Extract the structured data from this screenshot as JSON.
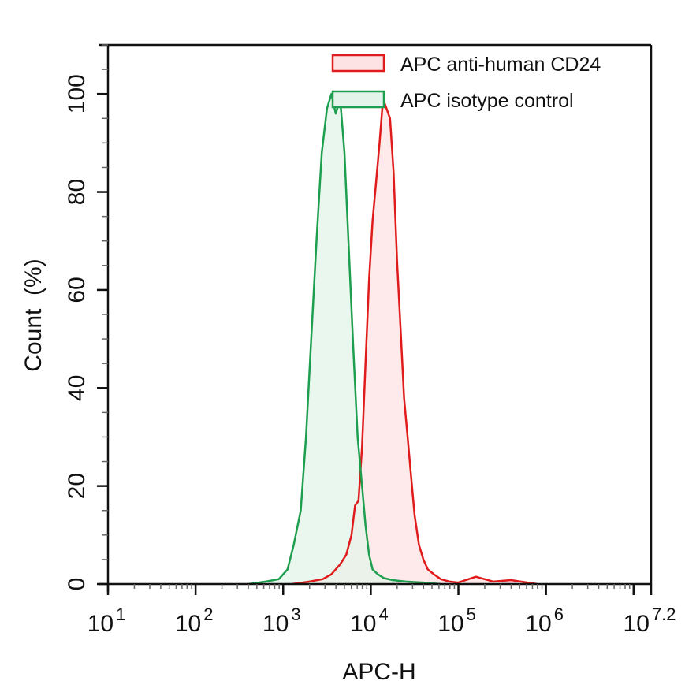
{
  "chart_data": {
    "type": "area",
    "title": "",
    "xlabel": "APC-H",
    "ylabel": "Count  (%)",
    "xscale": "log10",
    "xlim_log10": [
      1,
      7.2
    ],
    "ylim": [
      0,
      110
    ],
    "x_tick_labels": [
      {
        "base": "10",
        "exp": "1",
        "log10": 1
      },
      {
        "base": "10",
        "exp": "2",
        "log10": 2
      },
      {
        "base": "10",
        "exp": "3",
        "log10": 3
      },
      {
        "base": "10",
        "exp": "4",
        "log10": 4
      },
      {
        "base": "10",
        "exp": "5",
        "log10": 5
      },
      {
        "base": "10",
        "exp": "6",
        "log10": 6
      },
      {
        "base": "10",
        "exp": "7.2",
        "log10": 7.2
      }
    ],
    "y_ticks": [
      0,
      20,
      40,
      60,
      80,
      100
    ],
    "y_minor_step": 5,
    "grid": false,
    "legend_position": "top-right",
    "series": [
      {
        "name": "APC anti-human CD24",
        "color": "#e01b1b",
        "fill": "#fde3e3",
        "x_log10": [
          3.1,
          3.3,
          3.45,
          3.55,
          3.65,
          3.72,
          3.78,
          3.82,
          3.86,
          3.9,
          3.94,
          3.98,
          4.02,
          4.06,
          4.1,
          4.14,
          4.18,
          4.22,
          4.26,
          4.3,
          4.34,
          4.38,
          4.42,
          4.46,
          4.5,
          4.55,
          4.6,
          4.65,
          4.72,
          4.8,
          4.9,
          5.0,
          5.2,
          5.4,
          5.6,
          5.9
        ],
        "y": [
          0,
          0.5,
          1,
          2,
          4,
          6,
          10,
          16,
          17,
          28,
          45,
          62,
          74,
          82,
          90,
          99,
          97,
          95,
          84,
          66,
          52,
          38,
          30,
          22,
          14,
          8,
          5,
          3,
          2,
          1,
          0.5,
          0.3,
          1.5,
          0.5,
          0.8,
          0
        ]
      },
      {
        "name": "APC isotype control",
        "color": "#1e9e4f",
        "fill": "#e3f4ea",
        "x_log10": [
          2.6,
          2.8,
          2.95,
          3.05,
          3.12,
          3.2,
          3.26,
          3.32,
          3.38,
          3.44,
          3.5,
          3.55,
          3.6,
          3.65,
          3.7,
          3.75,
          3.8,
          3.85,
          3.9,
          3.94,
          3.98,
          4.02,
          4.08,
          4.15,
          4.25,
          4.4,
          4.6,
          4.8
        ],
        "y": [
          0,
          0.5,
          1,
          3,
          8,
          15,
          30,
          50,
          70,
          88,
          97,
          100,
          96,
          99,
          88,
          68,
          48,
          30,
          20,
          12,
          6,
          3,
          2,
          1.2,
          0.8,
          0.5,
          0.3,
          0
        ]
      }
    ]
  }
}
